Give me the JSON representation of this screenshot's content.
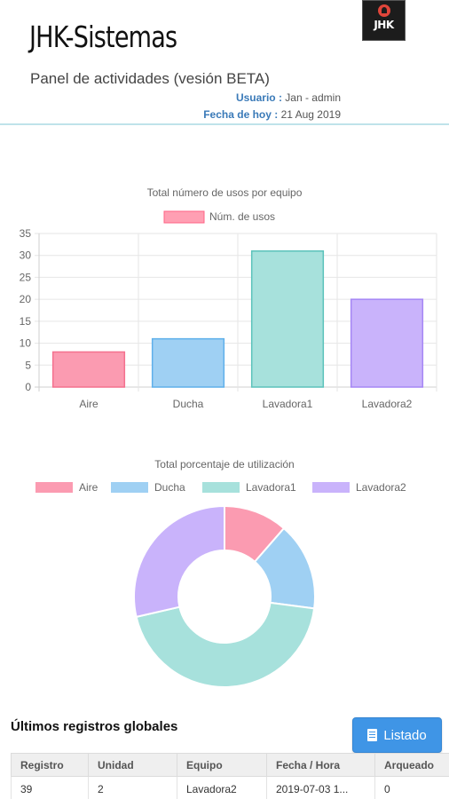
{
  "header": {
    "brand": "JHK-Sistemas",
    "logo_text": "JHK",
    "subtitle": "Panel de actividades (vesión BETA)",
    "user_label": "Usuario :",
    "user_value": "Jan - admin",
    "date_label": "Fecha de hoy :",
    "date_value": "21 Aug 2019"
  },
  "chart_data": [
    {
      "type": "bar",
      "title": "Total número de usos por equipo",
      "legend": "top",
      "categories": [
        "Aire",
        "Ducha",
        "Lavadora1",
        "Lavadora2"
      ],
      "series": [
        {
          "name": "Núm. de usos",
          "values": [
            8,
            11,
            31,
            20
          ]
        }
      ],
      "ylim": [
        0,
        35
      ],
      "yticks": [
        0,
        5,
        10,
        15,
        20,
        25,
        30,
        35
      ],
      "grid": true,
      "colors": {
        "fill": "#ff9fb3",
        "stroke": "#ff6384"
      },
      "bar_colors": [
        {
          "fill": "#fb9bb1",
          "stroke": "#f4718e"
        },
        {
          "fill": "#9fd0f3",
          "stroke": "#5fb0ea"
        },
        {
          "fill": "#a7e1dc",
          "stroke": "#5cc2bb"
        },
        {
          "fill": "#c9b3fb",
          "stroke": "#a586f5"
        }
      ]
    },
    {
      "type": "pie",
      "title": "Total porcentaje de utilización",
      "legend": "top",
      "labels": [
        "Aire",
        "Ducha",
        "Lavadora1",
        "Lavadora2"
      ],
      "values": [
        11.4,
        15.7,
        44.3,
        28.6
      ],
      "colors": [
        "#fb9bb1",
        "#9fd0f3",
        "#a7e1dc",
        "#c9b3fb"
      ]
    }
  ],
  "records": {
    "title": "Últimos registros globales",
    "button_label": "Listado",
    "columns": [
      "Registro",
      "Unidad",
      "Equipo",
      "Fecha / Hora",
      "Arqueado"
    ],
    "rows": [
      [
        "39",
        "2",
        "Lavadora2",
        "2019-07-03 1...",
        "0"
      ]
    ]
  }
}
